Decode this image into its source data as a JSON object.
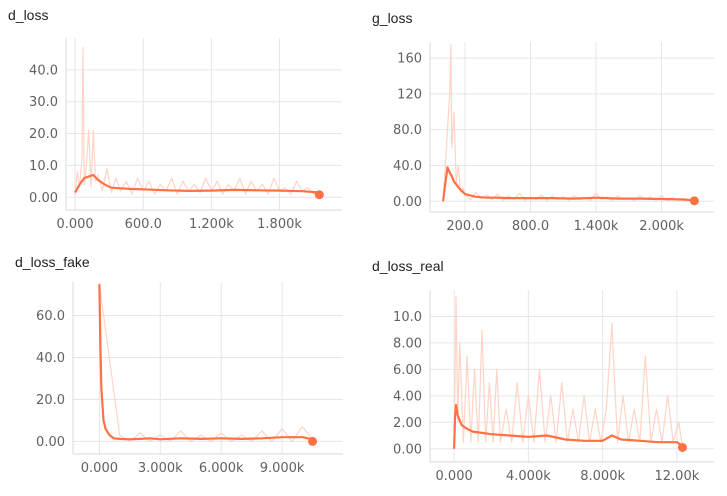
{
  "accent_color": "#ff7043",
  "raw_color": "#ffccbc",
  "chart_data": [
    {
      "type": "line",
      "title": "d_loss",
      "xlabel": "",
      "ylabel": "",
      "x_ticks": [
        0,
        600,
        1200,
        1800
      ],
      "x_tick_labels": [
        "0.000",
        "600.0",
        "1.200k",
        "1.800k"
      ],
      "y_ticks": [
        0,
        10,
        20,
        30,
        40
      ],
      "y_tick_labels": [
        "0.00",
        "10.0",
        "20.0",
        "30.0",
        "40.0"
      ],
      "xlim": [
        -80,
        2350
      ],
      "ylim": [
        -4,
        50
      ],
      "grid": true,
      "series": [
        {
          "values_kind": "smoothed",
          "x": [
            0,
            40,
            80,
            120,
            160,
            200,
            260,
            320,
            400,
            500,
            600,
            800,
            1000,
            1200,
            1400,
            1600,
            1800,
            2000,
            2150
          ],
          "y": [
            1.5,
            4.0,
            6.0,
            6.5,
            7.0,
            5.5,
            4.0,
            3.0,
            2.8,
            2.6,
            2.5,
            2.2,
            2.0,
            2.1,
            2.3,
            2.2,
            2.1,
            1.9,
            1.5
          ]
        },
        {
          "values_kind": "raw",
          "x": [
            0,
            20,
            40,
            60,
            70,
            80,
            100,
            120,
            140,
            160,
            180,
            200,
            240,
            280,
            320,
            360,
            400,
            450,
            500,
            550,
            600,
            650,
            700,
            750,
            800,
            850,
            900,
            950,
            1000,
            1050,
            1100,
            1150,
            1200,
            1250,
            1300,
            1350,
            1400,
            1450,
            1500,
            1550,
            1600,
            1650,
            1700,
            1750,
            1800,
            1850,
            1900,
            1950,
            2000,
            2050,
            2100,
            2150
          ],
          "y": [
            0.5,
            8.0,
            3.0,
            12.0,
            47.0,
            4.0,
            10.0,
            21.0,
            3.0,
            21.0,
            5.0,
            7.0,
            2.0,
            9.0,
            1.5,
            6.0,
            2.0,
            5.0,
            1.0,
            6.0,
            2.0,
            5.0,
            1.0,
            4.0,
            2.0,
            6.0,
            1.0,
            5.0,
            2.0,
            4.0,
            1.5,
            6.0,
            2.0,
            5.0,
            1.0,
            4.0,
            2.0,
            6.0,
            1.0,
            5.0,
            2.0,
            4.0,
            1.0,
            6.0,
            2.0,
            3.0,
            1.0,
            5.0,
            2.0,
            3.0,
            1.0,
            1.5
          ]
        }
      ],
      "last_point": {
        "x": 2150,
        "y": 0.8
      }
    },
    {
      "type": "line",
      "title": "g_loss",
      "xlabel": "",
      "ylabel": "",
      "x_ticks": [
        200,
        800,
        1400,
        2000
      ],
      "x_tick_labels": [
        "200.0",
        "800.0",
        "1.400k",
        "2.000k"
      ],
      "y_ticks": [
        0,
        40,
        80,
        120,
        160
      ],
      "y_tick_labels": [
        "0.00",
        "40.0",
        "80.0",
        "120",
        "160"
      ],
      "xlim": [
        -120,
        2480
      ],
      "ylim": [
        -12,
        178
      ],
      "grid": true,
      "series": [
        {
          "values_kind": "smoothed",
          "x": [
            0,
            20,
            40,
            60,
            80,
            100,
            150,
            200,
            300,
            400,
            500,
            600,
            800,
            1000,
            1200,
            1400,
            1600,
            1800,
            2000,
            2200,
            2300
          ],
          "y": [
            0,
            20,
            38,
            32,
            28,
            22,
            14,
            8,
            5,
            4,
            4,
            3.5,
            3.5,
            3.5,
            3,
            4,
            3,
            3,
            2.5,
            2,
            1
          ]
        },
        {
          "values_kind": "raw",
          "x": [
            0,
            20,
            40,
            60,
            70,
            80,
            100,
            120,
            140,
            160,
            180,
            200,
            250,
            300,
            350,
            400,
            450,
            500,
            550,
            600,
            650,
            700,
            750,
            800,
            850,
            900,
            950,
            1000,
            1050,
            1100,
            1150,
            1200,
            1250,
            1300,
            1350,
            1400,
            1450,
            1500,
            1550,
            1600,
            1650,
            1700,
            1750,
            1800,
            1850,
            1900,
            1950,
            2000,
            2050,
            2100,
            2150,
            2200,
            2250,
            2300
          ],
          "y": [
            0,
            40,
            80,
            120,
            175,
            60,
            100,
            20,
            40,
            10,
            15,
            8,
            2,
            10,
            3,
            7,
            2,
            8,
            1,
            6,
            2,
            9,
            1,
            5,
            2,
            7,
            1,
            6,
            2,
            5,
            1,
            6,
            2,
            4,
            1,
            9,
            2,
            5,
            1,
            6,
            2,
            4,
            1,
            6,
            2,
            5,
            1,
            6,
            1,
            4,
            1,
            3,
            1,
            1
          ]
        }
      ],
      "last_point": {
        "x": 2300,
        "y": 0.5
      }
    },
    {
      "type": "line",
      "title": "d_loss_fake",
      "xlabel": "",
      "ylabel": "",
      "x_ticks": [
        0,
        3000,
        6000,
        9000
      ],
      "x_tick_labels": [
        "0.000",
        "3.000k",
        "6.000k",
        "9.000k"
      ],
      "y_ticks": [
        0,
        20,
        40,
        60
      ],
      "y_tick_labels": [
        "0.00",
        "20.0",
        "40.0",
        "60.0"
      ],
      "xlim": [
        -1300,
        12000
      ],
      "ylim": [
        -6,
        76
      ],
      "grid": true,
      "series": [
        {
          "values_kind": "smoothed",
          "x": [
            0,
            50,
            100,
            200,
            300,
            500,
            700,
            1000,
            1500,
            2000,
            2500,
            3000,
            4000,
            5000,
            6000,
            7000,
            8000,
            9000,
            10000,
            10500
          ],
          "y": [
            75,
            45,
            25,
            10,
            6,
            3,
            1.5,
            1.2,
            1.0,
            1.2,
            1.5,
            1.0,
            1.5,
            1.2,
            1.5,
            1.2,
            1.5,
            2.0,
            2.0,
            1.0
          ]
        },
        {
          "values_kind": "raw",
          "x": [
            0,
            1000,
            1500,
            2000,
            2500,
            3000,
            3500,
            4000,
            4500,
            5000,
            5500,
            6000,
            6500,
            7000,
            7500,
            8000,
            8500,
            9000,
            9500,
            10000,
            10500
          ],
          "y": [
            75,
            3,
            0,
            4,
            0,
            3,
            0,
            5,
            0,
            3,
            0,
            4,
            0,
            3,
            0,
            5,
            0,
            6,
            0,
            7,
            1
          ]
        }
      ],
      "last_point": {
        "x": 10500,
        "y": 0
      }
    },
    {
      "type": "line",
      "title": "d_loss_real",
      "xlabel": "",
      "ylabel": "",
      "x_ticks": [
        0,
        4000,
        8000,
        12000
      ],
      "x_tick_labels": [
        "0.000",
        "4.000k",
        "8.000k",
        "12.00k"
      ],
      "y_ticks": [
        0,
        2,
        4,
        6,
        8,
        10
      ],
      "y_tick_labels": [
        "0.00",
        "2.00",
        "4.00",
        "6.00",
        "8.00",
        "10.0"
      ],
      "xlim": [
        -1300,
        14000
      ],
      "ylim": [
        -1,
        12
      ],
      "grid": true,
      "series": [
        {
          "values_kind": "smoothed",
          "x": [
            0,
            50,
            100,
            200,
            400,
            700,
            1000,
            1500,
            2000,
            3000,
            4000,
            5000,
            6000,
            7000,
            8000,
            8500,
            9000,
            10000,
            11000,
            12000,
            12300
          ],
          "y": [
            0,
            2.5,
            3.3,
            2.5,
            1.8,
            1.5,
            1.3,
            1.2,
            1.1,
            1.0,
            0.9,
            1.0,
            0.7,
            0.6,
            0.6,
            1.0,
            0.7,
            0.6,
            0.5,
            0.5,
            0.2
          ]
        },
        {
          "values_kind": "raw",
          "x": [
            0,
            100,
            200,
            300,
            500,
            700,
            900,
            1100,
            1300,
            1500,
            1700,
            1900,
            2100,
            2300,
            2500,
            2800,
            3100,
            3400,
            3700,
            4000,
            4300,
            4600,
            4900,
            5200,
            5500,
            5800,
            6100,
            6400,
            6700,
            7000,
            7300,
            7600,
            7900,
            8200,
            8500,
            8800,
            9100,
            9400,
            9700,
            10000,
            10300,
            10600,
            10900,
            11200,
            11500,
            11800,
            12100,
            12300
          ],
          "y": [
            0,
            11.5,
            2,
            8,
            0.5,
            7,
            0.5,
            6,
            0.5,
            9,
            0.5,
            5,
            0.5,
            6,
            0.5,
            3,
            0.5,
            5,
            0.5,
            4,
            0.5,
            6,
            0.5,
            4,
            0.5,
            5,
            0.5,
            3,
            0.5,
            4,
            0.5,
            3,
            0.5,
            3,
            9.5,
            0.5,
            4,
            0.5,
            3,
            0.5,
            7,
            0.5,
            3,
            0.5,
            4,
            0.5,
            2,
            0.3
          ]
        }
      ],
      "last_point": {
        "x": 12300,
        "y": 0.1
      }
    }
  ]
}
